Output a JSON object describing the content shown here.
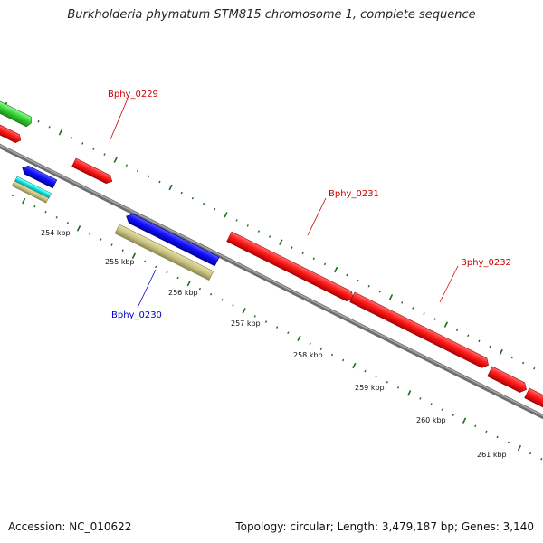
{
  "title": "Burkholderia phymatum STM815 chromosome 1, complete sequence",
  "footer": {
    "accession": "Accession: NC_010622",
    "summary": "Topology: circular; Length: 3,479,187 bp; Genes: 3,140"
  },
  "colors": {
    "forward_gene": "#ff0000",
    "reverse_gene": "#0000ff",
    "rrna": "#00e5e5",
    "misc_feature": "#c9c27e",
    "tick": "#1a6b1a",
    "backbone": "#888888",
    "green_gene": "#33cc33"
  },
  "tick_labels": [
    "254 kbp",
    "255 kbp",
    "256 kbp",
    "257 kbp",
    "258 kbp",
    "259 kbp",
    "260 kbp",
    "261 kbp"
  ],
  "gene_labels": {
    "bphy_0229": "Bphy_0229",
    "bphy_0230": "Bphy_0230",
    "bphy_0231": "Bphy_0231",
    "bphy_0232": "Bphy_0232"
  }
}
